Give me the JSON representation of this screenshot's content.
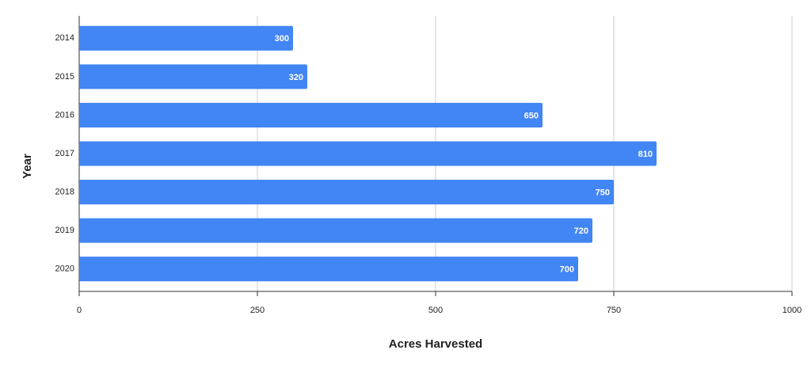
{
  "chart_data": {
    "type": "bar",
    "orientation": "horizontal",
    "x_label": "Acres Harvested",
    "y_label": "Year",
    "categories": [
      "2014",
      "2015",
      "2016",
      "2017",
      "2018",
      "2019",
      "2020"
    ],
    "values": [
      300,
      320,
      650,
      810,
      750,
      720,
      700
    ],
    "color": "#4285f4",
    "xlim": [
      0,
      1000
    ],
    "xticks": [
      0,
      250,
      500,
      750,
      1000
    ],
    "grid": true
  }
}
